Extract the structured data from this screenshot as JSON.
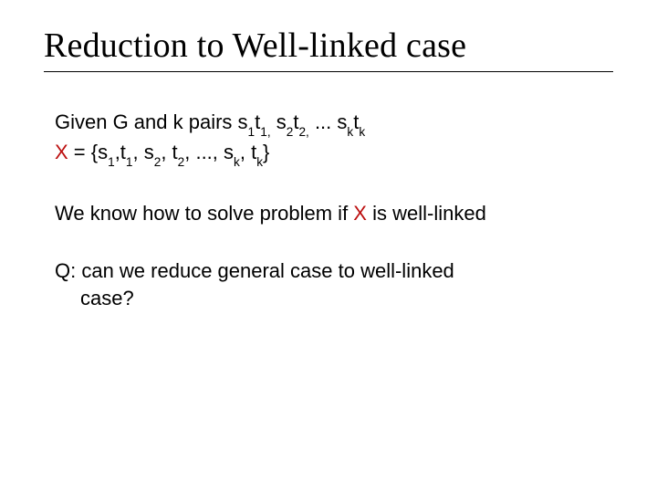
{
  "title": "Reduction to  Well-linked case",
  "colors": {
    "text": "#000000",
    "accent_red": "#bc0f0f",
    "background": "#ffffff",
    "rule": "#000000"
  },
  "typography": {
    "title_family": "Times New Roman",
    "title_fontsize_pt": 29,
    "body_family": "Verdana",
    "body_fontsize_pt": 17
  },
  "p1": {
    "lead": "Given G and k pairs s",
    "s_sub_1": "1",
    "t": "t",
    "t_sub_1": "1,",
    "sp1": " s",
    "s_sub_2": "2",
    "t2": "t",
    "t_sub_2": "2,",
    "dots": " ... s",
    "s_sub_k": "k",
    "tk": "t",
    "t_sub_k": "k"
  },
  "p1b": {
    "X": "X",
    "eq": " = {s",
    "s1": "1",
    "c1": ",t",
    "t1": "1",
    "c2": ", s",
    "s2": "2",
    "c3": ", t",
    "t2": "2",
    "c4": ", ..., s",
    "sk": "k",
    "c5": ", t",
    "tk2": "k",
    "close": "}"
  },
  "p2": {
    "a": "We know how to solve problem if ",
    "X": "X",
    "b": " is well-linked"
  },
  "p3": {
    "a": "Q: can we reduce general case to well-linked",
    "b": "case?"
  }
}
